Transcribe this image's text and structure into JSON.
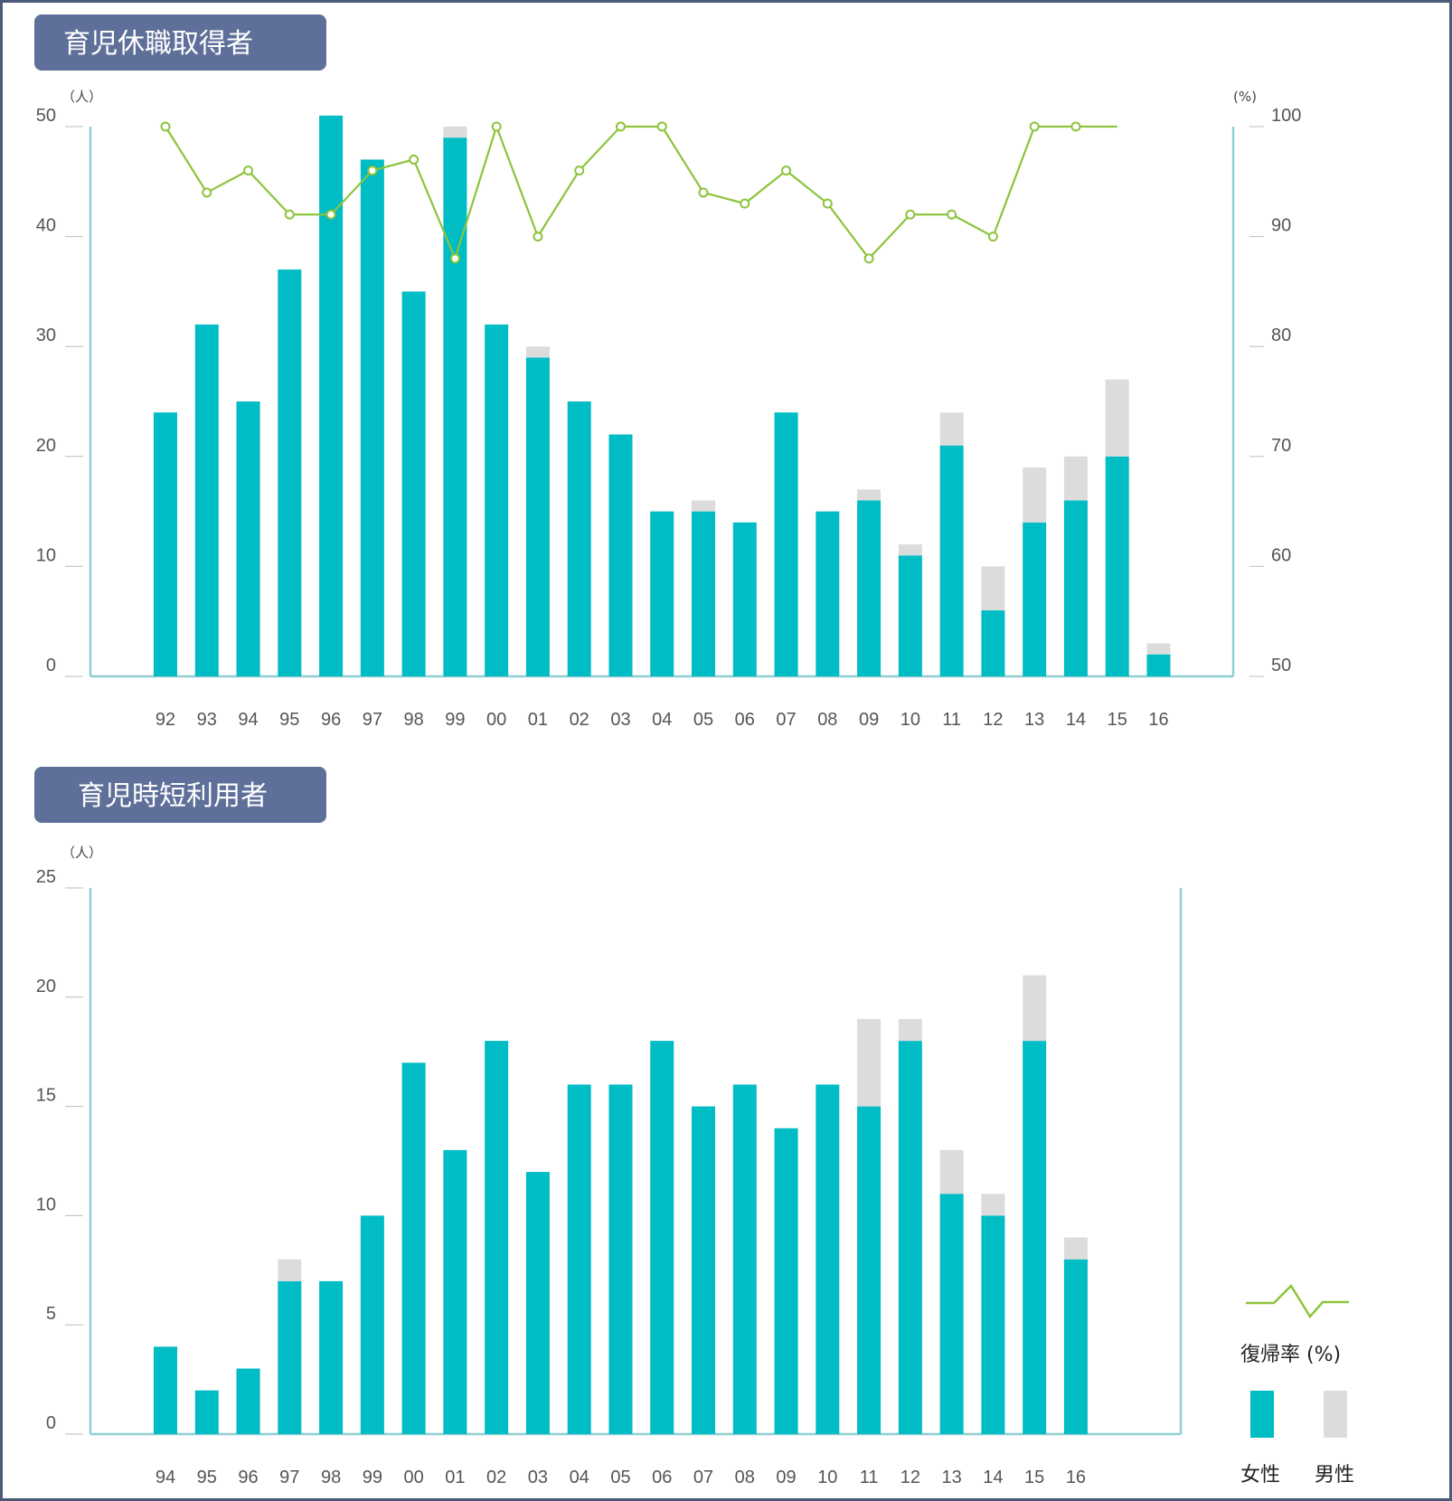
{
  "colors": {
    "female": "#00bcc4",
    "male": "#dcdcdc",
    "line": "#8cc43c",
    "axis": "#8ecfd3",
    "title_bg": "#5e7099"
  },
  "chart_data": [
    {
      "type": "bar",
      "title": "育児休職取得者",
      "y_unit": "（人）",
      "y2_unit": "(%)",
      "ylim": [
        0,
        50
      ],
      "y_ticks": [
        "0",
        "10",
        "20",
        "30",
        "40",
        "50"
      ],
      "y2lim": [
        50,
        100
      ],
      "y2_ticks": [
        "50",
        "60",
        "70",
        "80",
        "90",
        "100"
      ],
      "categories": [
        "92",
        "93",
        "94",
        "95",
        "96",
        "97",
        "98",
        "99",
        "00",
        "01",
        "02",
        "03",
        "04",
        "05",
        "06",
        "07",
        "08",
        "09",
        "10",
        "11",
        "12",
        "13",
        "14",
        "15",
        "16"
      ],
      "series": [
        {
          "name": "女性",
          "values": [
            24,
            32,
            25,
            37,
            51,
            47,
            35,
            49,
            32,
            29,
            25,
            22,
            15,
            15,
            14,
            24,
            15,
            16,
            11,
            21,
            6,
            14,
            16,
            20,
            2
          ]
        },
        {
          "name": "男性",
          "values": [
            0,
            0,
            0,
            0,
            0,
            0,
            0,
            1,
            0,
            1,
            0,
            0,
            0,
            1,
            0,
            0,
            0,
            1,
            1,
            3,
            4,
            5,
            4,
            7,
            1
          ]
        },
        {
          "name": "復帰率 (%)",
          "type": "line",
          "values": [
            100,
            94,
            96,
            92,
            92,
            96,
            97,
            88,
            100,
            90,
            96,
            100,
            100,
            94,
            93,
            96,
            93,
            88,
            92,
            92,
            90,
            100,
            100,
            100,
            null
          ]
        }
      ]
    },
    {
      "type": "bar",
      "title": "育児時短利用者",
      "y_unit": "（人）",
      "ylim": [
        0,
        25
      ],
      "y_ticks": [
        "0",
        "5",
        "10",
        "15",
        "20",
        "25"
      ],
      "categories": [
        "94",
        "95",
        "96",
        "97",
        "98",
        "99",
        "00",
        "01",
        "02",
        "03",
        "04",
        "05",
        "06",
        "07",
        "08",
        "09",
        "10",
        "11",
        "12",
        "13",
        "14",
        "15",
        "16"
      ],
      "series": [
        {
          "name": "女性",
          "values": [
            4,
            2,
            3,
            7,
            7,
            10,
            17,
            13,
            18,
            12,
            16,
            16,
            18,
            15,
            16,
            14,
            16,
            15,
            18,
            11,
            10,
            18,
            8
          ]
        },
        {
          "name": "男性",
          "values": [
            0,
            0,
            0,
            1,
            0,
            0,
            0,
            0,
            0,
            0,
            0,
            0,
            0,
            0,
            0,
            0,
            0,
            4,
            1,
            2,
            1,
            3,
            1
          ]
        }
      ]
    }
  ],
  "legend": {
    "line_label": "復帰率 (%)",
    "female_label": "女性",
    "male_label": "男性"
  }
}
